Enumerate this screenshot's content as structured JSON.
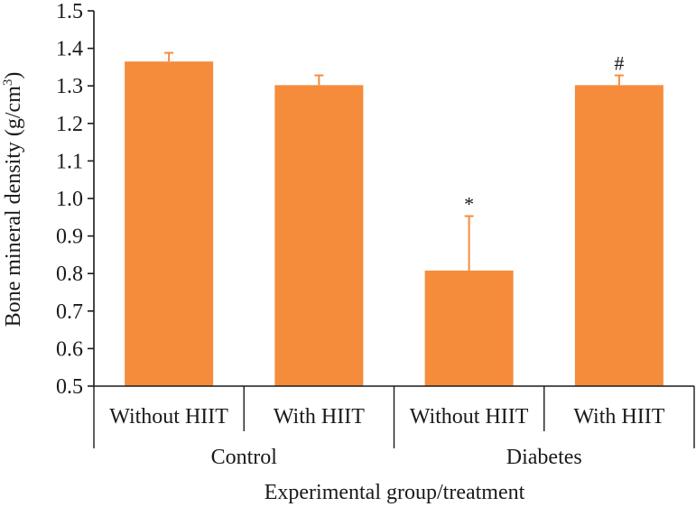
{
  "chart_data": {
    "type": "bar",
    "categories": [
      "Without HIIT",
      "With HIIT",
      "Without HIIT",
      "With HIIT"
    ],
    "groups": [
      {
        "label": "Control",
        "categories": [
          0,
          1
        ]
      },
      {
        "label": "Diabetes",
        "categories": [
          2,
          3
        ]
      }
    ],
    "values": [
      1.365,
      1.302,
      0.808,
      1.302
    ],
    "error_upper": [
      1.388,
      1.328,
      0.953,
      1.328
    ],
    "annotations": [
      "",
      "",
      "*",
      "#"
    ],
    "xlabel": "Experimental group/treatment",
    "ylabel_main": "Bone mineral density (g/cm",
    "ylabel_sup": "3",
    "ylabel_end": ")",
    "ylim": [
      0.5,
      1.5
    ],
    "yticks": [
      "0.5",
      "0.6",
      "0.7",
      "0.8",
      "0.9",
      "1.0",
      "1.1",
      "1.2",
      "1.3",
      "1.4",
      "1.5"
    ],
    "grid": false,
    "bar_color": "#f58c3c",
    "axis_color": "#1a1a1a"
  }
}
